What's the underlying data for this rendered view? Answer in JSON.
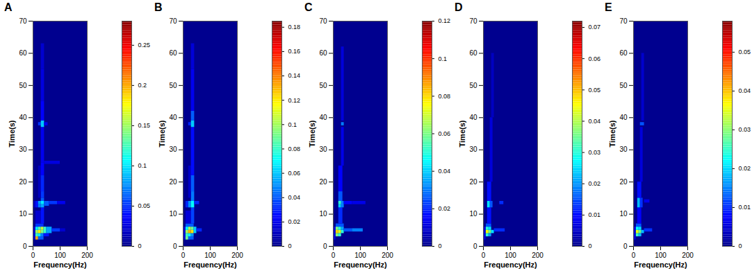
{
  "chart_data": [
    {
      "type": "heatmap",
      "title": "A",
      "x_label": "Frequency(Hz)",
      "y_label": "Time(s)",
      "xlim": [
        0,
        200
      ],
      "xticks": [
        0,
        100,
        200
      ],
      "ylim": [
        0,
        70
      ],
      "yticks": [
        0,
        10,
        20,
        30,
        40,
        50,
        60,
        70
      ],
      "cells": [
        [
          0,
          10,
          2,
          6,
          0.02
        ],
        [
          10,
          20,
          2,
          3,
          0.2
        ],
        [
          20,
          40,
          2,
          3,
          0.06
        ],
        [
          10,
          20,
          3,
          4,
          0.12
        ],
        [
          20,
          30,
          3,
          4,
          0.1
        ],
        [
          30,
          40,
          3,
          4,
          0.07
        ],
        [
          40,
          60,
          3,
          4,
          0.04
        ],
        [
          10,
          20,
          4,
          5,
          0.15
        ],
        [
          20,
          30,
          4,
          5,
          0.18
        ],
        [
          30,
          40,
          4,
          5,
          0.14
        ],
        [
          10,
          20,
          5,
          6,
          0.1
        ],
        [
          20,
          30,
          5,
          6,
          0.13
        ],
        [
          30,
          40,
          5,
          6,
          0.16
        ],
        [
          40,
          50,
          4,
          6,
          0.12
        ],
        [
          50,
          70,
          4,
          6,
          0.08
        ],
        [
          70,
          100,
          4.5,
          5.5,
          0.05
        ],
        [
          100,
          120,
          4.5,
          5.5,
          0.02
        ],
        [
          10,
          40,
          6,
          7,
          0.05
        ],
        [
          10,
          30,
          7,
          11,
          0.02
        ],
        [
          30,
          42,
          7,
          12,
          0.04
        ],
        [
          0,
          10,
          12,
          14,
          0.015
        ],
        [
          10,
          20,
          12,
          14,
          0.04
        ],
        [
          20,
          30,
          12,
          13,
          0.07
        ],
        [
          30,
          42,
          12,
          13,
          0.08
        ],
        [
          20,
          30,
          13,
          14,
          0.08
        ],
        [
          30,
          42,
          13,
          14,
          0.1
        ],
        [
          42,
          60,
          12.5,
          14,
          0.06
        ],
        [
          60,
          90,
          13,
          14,
          0.05
        ],
        [
          90,
          120,
          13,
          14,
          0.03
        ],
        [
          30,
          42,
          14,
          15,
          0.06
        ],
        [
          30,
          42,
          15,
          17,
          0.05
        ],
        [
          20,
          30,
          15,
          25,
          0.015
        ],
        [
          30,
          42,
          17,
          22,
          0.045
        ],
        [
          30,
          42,
          22,
          26,
          0.035
        ],
        [
          42,
          100,
          25.5,
          26.5,
          0.025
        ],
        [
          30,
          42,
          26,
          37,
          0.03
        ],
        [
          20,
          30,
          37.5,
          38.5,
          0.05
        ],
        [
          30,
          42,
          37,
          39,
          0.09
        ],
        [
          42,
          55,
          37.5,
          38.5,
          0.03
        ],
        [
          30,
          42,
          39,
          45,
          0.035
        ],
        [
          30,
          42,
          45,
          55,
          0.025
        ],
        [
          30,
          42,
          55,
          63,
          0.02
        ]
      ],
      "colorbar": {
        "range": [
          0,
          0.28
        ],
        "ticks": [
          0,
          0.05,
          0.1,
          0.15,
          0.2,
          0.25
        ]
      }
    },
    {
      "type": "heatmap",
      "title": "B",
      "x_label": "Frequency(Hz)",
      "y_label": "Time(s)",
      "xlim": [
        0,
        200
      ],
      "xticks": [
        0,
        100,
        200
      ],
      "ylim": [
        0,
        70
      ],
      "yticks": [
        0,
        10,
        20,
        30,
        40,
        50,
        60,
        70
      ],
      "cells": [
        [
          0,
          10,
          2,
          6,
          0.015
        ],
        [
          10,
          20,
          2,
          3,
          0.09
        ],
        [
          20,
          40,
          2,
          3,
          0.04
        ],
        [
          10,
          20,
          3,
          4,
          0.08
        ],
        [
          20,
          30,
          3,
          4,
          0.07
        ],
        [
          30,
          40,
          3,
          4,
          0.05
        ],
        [
          10,
          20,
          4,
          5,
          0.1
        ],
        [
          20,
          30,
          4,
          5,
          0.13
        ],
        [
          30,
          40,
          4,
          5,
          0.12
        ],
        [
          10,
          20,
          5,
          6,
          0.07
        ],
        [
          20,
          30,
          5,
          6,
          0.1
        ],
        [
          30,
          40,
          5,
          6,
          0.09
        ],
        [
          40,
          50,
          4,
          6,
          0.06
        ],
        [
          50,
          70,
          4.5,
          5.5,
          0.03
        ],
        [
          10,
          40,
          6,
          7,
          0.04
        ],
        [
          10,
          30,
          7,
          11,
          0.015
        ],
        [
          30,
          42,
          7,
          12,
          0.035
        ],
        [
          10,
          20,
          12,
          14,
          0.03
        ],
        [
          20,
          30,
          12,
          14,
          0.05
        ],
        [
          30,
          42,
          12,
          14,
          0.07
        ],
        [
          42,
          60,
          13,
          14,
          0.03
        ],
        [
          30,
          42,
          14,
          17,
          0.045
        ],
        [
          20,
          30,
          15,
          25,
          0.012
        ],
        [
          30,
          42,
          17,
          22,
          0.04
        ],
        [
          30,
          42,
          22,
          37,
          0.025
        ],
        [
          20,
          30,
          37.5,
          38.5,
          0.03
        ],
        [
          30,
          42,
          37,
          39,
          0.06
        ],
        [
          30,
          42,
          39,
          42,
          0.04
        ],
        [
          30,
          42,
          42,
          55,
          0.02
        ],
        [
          30,
          42,
          55,
          63,
          0.015
        ]
      ],
      "colorbar": {
        "range": [
          0,
          0.185
        ],
        "ticks": [
          0,
          0.02,
          0.04,
          0.06,
          0.08,
          0.1,
          0.12,
          0.14,
          0.16,
          0.18
        ]
      }
    },
    {
      "type": "heatmap",
      "title": "C",
      "x_label": "Frequency(Hz)",
      "y_label": "Time(s)",
      "xlim": [
        0,
        200
      ],
      "xticks": [
        0,
        100,
        200
      ],
      "ylim": [
        0,
        70
      ],
      "yticks": [
        0,
        10,
        20,
        30,
        40,
        50,
        60,
        70
      ],
      "cells": [
        [
          0,
          10,
          2,
          6,
          0.01
        ],
        [
          10,
          20,
          3,
          4,
          0.06
        ],
        [
          20,
          30,
          3,
          4,
          0.05
        ],
        [
          10,
          20,
          4,
          5,
          0.08
        ],
        [
          20,
          30,
          4,
          5,
          0.07
        ],
        [
          30,
          40,
          4,
          5,
          0.05
        ],
        [
          10,
          20,
          5,
          6,
          0.06
        ],
        [
          20,
          30,
          5,
          6,
          0.05
        ],
        [
          30,
          40,
          5,
          6,
          0.035
        ],
        [
          40,
          70,
          4.5,
          5.5,
          0.025
        ],
        [
          70,
          110,
          4.5,
          5.5,
          0.03
        ],
        [
          10,
          40,
          6,
          7,
          0.025
        ],
        [
          20,
          35,
          7,
          12,
          0.02
        ],
        [
          20,
          30,
          12,
          13,
          0.04
        ],
        [
          30,
          40,
          12,
          14,
          0.03
        ],
        [
          20,
          30,
          13,
          14,
          0.05
        ],
        [
          40,
          70,
          13,
          14,
          0.015
        ],
        [
          70,
          120,
          13,
          14,
          0.012
        ],
        [
          20,
          35,
          14,
          17,
          0.025
        ],
        [
          20,
          35,
          17,
          25,
          0.015
        ],
        [
          30,
          40,
          25,
          37,
          0.012
        ],
        [
          30,
          40,
          37.5,
          38.5,
          0.03
        ],
        [
          30,
          40,
          39,
          62,
          0.01
        ]
      ],
      "colorbar": {
        "range": [
          0,
          0.12
        ],
        "ticks": [
          0,
          0.02,
          0.04,
          0.06,
          0.08,
          0.1,
          0.12
        ]
      }
    },
    {
      "type": "heatmap",
      "title": "D",
      "x_label": "Frequency(Hz)",
      "y_label": "Time(s)",
      "xlim": [
        0,
        200
      ],
      "xticks": [
        0,
        100,
        200
      ],
      "ylim": [
        0,
        70
      ],
      "yticks": [
        0,
        10,
        20,
        30,
        40,
        50,
        60,
        70
      ],
      "cells": [
        [
          0,
          10,
          2,
          6,
          0.006
        ],
        [
          10,
          20,
          3,
          4,
          0.03
        ],
        [
          20,
          30,
          3,
          4,
          0.02
        ],
        [
          10,
          20,
          4,
          5,
          0.045
        ],
        [
          20,
          30,
          4,
          5,
          0.035
        ],
        [
          30,
          40,
          4,
          5,
          0.025
        ],
        [
          10,
          20,
          5,
          6,
          0.03
        ],
        [
          20,
          30,
          5,
          6,
          0.025
        ],
        [
          40,
          80,
          4.5,
          5.5,
          0.012
        ],
        [
          10,
          30,
          6,
          7,
          0.015
        ],
        [
          15,
          30,
          7,
          12,
          0.01
        ],
        [
          15,
          25,
          12,
          14,
          0.025
        ],
        [
          25,
          35,
          12,
          14,
          0.015
        ],
        [
          60,
          75,
          13,
          14,
          0.012
        ],
        [
          15,
          30,
          14,
          20,
          0.01
        ],
        [
          25,
          35,
          20,
          40,
          0.006
        ],
        [
          30,
          40,
          40,
          60,
          0.004
        ]
      ],
      "colorbar": {
        "range": [
          0,
          0.072
        ],
        "ticks": [
          0,
          0.01,
          0.02,
          0.03,
          0.04,
          0.05,
          0.06,
          0.07
        ]
      }
    },
    {
      "type": "heatmap",
      "title": "E",
      "x_label": "Frequency(Hz)",
      "y_label": "Time(s)",
      "xlim": [
        0,
        200
      ],
      "xticks": [
        0,
        100,
        200
      ],
      "ylim": [
        0,
        70
      ],
      "yticks": [
        0,
        10,
        20,
        30,
        40,
        50,
        60,
        70
      ],
      "cells": [
        [
          0,
          10,
          2,
          6,
          0.005
        ],
        [
          10,
          20,
          3,
          4,
          0.025
        ],
        [
          20,
          30,
          3,
          4,
          0.018
        ],
        [
          10,
          20,
          4,
          5,
          0.035
        ],
        [
          20,
          30,
          4,
          5,
          0.028
        ],
        [
          30,
          40,
          4,
          5,
          0.018
        ],
        [
          10,
          20,
          5,
          6,
          0.022
        ],
        [
          20,
          30,
          5,
          6,
          0.02
        ],
        [
          40,
          70,
          4.5,
          5.5,
          0.01
        ],
        [
          10,
          30,
          6,
          7,
          0.012
        ],
        [
          15,
          30,
          7,
          12,
          0.007
        ],
        [
          15,
          25,
          12,
          15,
          0.018
        ],
        [
          25,
          35,
          12,
          15,
          0.01
        ],
        [
          40,
          60,
          13.5,
          14.5,
          0.006
        ],
        [
          15,
          30,
          15,
          20,
          0.008
        ],
        [
          25,
          35,
          20,
          37,
          0.005
        ],
        [
          25,
          40,
          37.5,
          38.5,
          0.012
        ],
        [
          30,
          40,
          39,
          60,
          0.004
        ]
      ],
      "colorbar": {
        "range": [
          0,
          0.058
        ],
        "ticks": [
          0,
          0.01,
          0.02,
          0.03,
          0.04,
          0.05
        ]
      }
    }
  ]
}
